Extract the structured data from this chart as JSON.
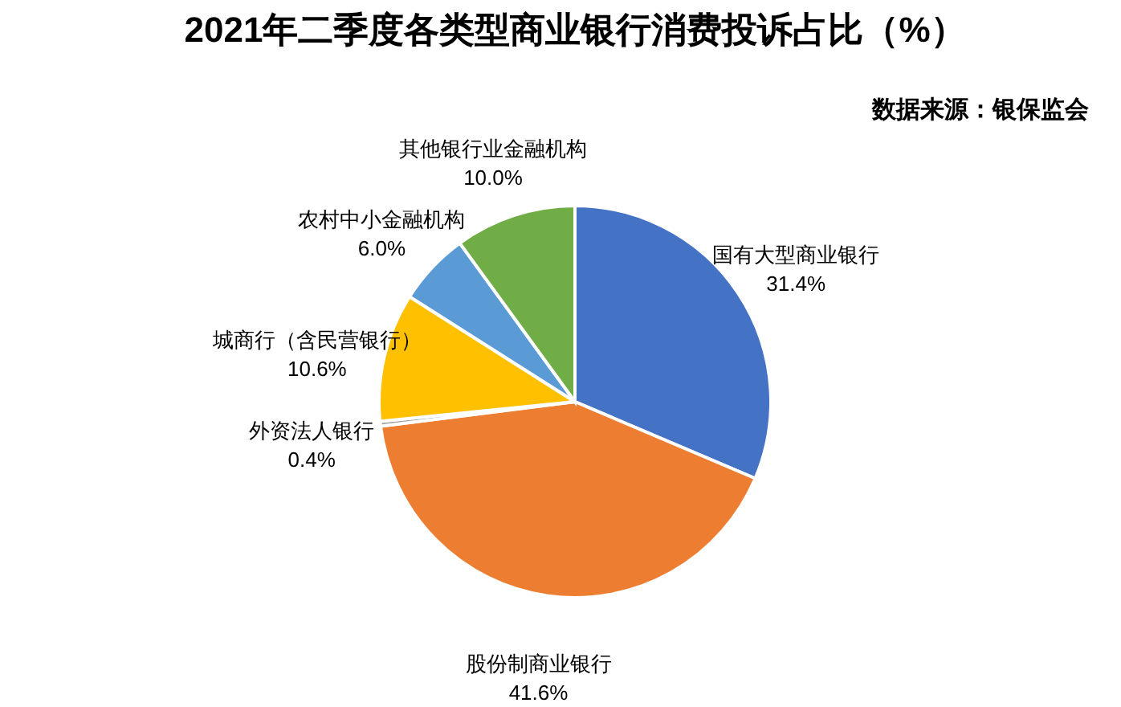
{
  "chart_data": {
    "type": "pie",
    "title": "2021年二季度各类型商业银行消费投诉占比（%）",
    "annotations": [
      "数据来源：银保监会"
    ],
    "categories": [
      "国有大型商业银行",
      "股份制商业银行",
      "外资法人银行",
      "城商行（含民营银行）",
      "农村中小金融机构",
      "其他银行业金融机构"
    ],
    "values": [
      31.4,
      41.6,
      0.4,
      10.6,
      6.0,
      10.0
    ],
    "value_labels": [
      "31.4%",
      "41.6%",
      "0.4%",
      "10.6%",
      "6.0%",
      "10.0%"
    ],
    "colors": [
      "#4472c4",
      "#ed7d31",
      "#a5a5a5",
      "#ffc000",
      "#5b9bd5",
      "#70ad47"
    ]
  }
}
